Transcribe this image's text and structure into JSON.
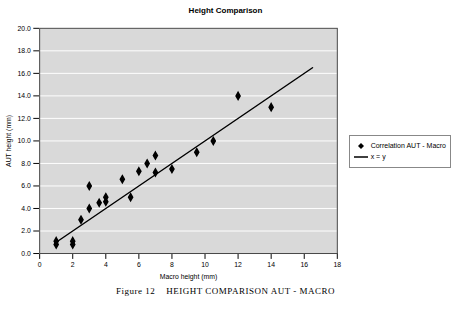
{
  "chart_data": {
    "type": "scatter",
    "title": "Height Comparison",
    "caption": "Figure 12    HEIGHT COMPARISON AUT - MACRO",
    "x_label": "Macro height (mm)",
    "y_label": "AUT height (mm)",
    "xlim": [
      0,
      18
    ],
    "xticks": [
      0,
      2,
      4,
      6,
      8,
      10,
      12,
      14,
      16,
      18
    ],
    "ylim": [
      0,
      20
    ],
    "yticks": [
      {
        "value": 0,
        "label": "0.0"
      },
      {
        "value": 2,
        "label": "2.0"
      },
      {
        "value": 4,
        "label": "4.0"
      },
      {
        "value": 6,
        "label": "6.0"
      },
      {
        "value": 8,
        "label": "8.0"
      },
      {
        "value": 10,
        "label": "10.0"
      },
      {
        "value": 12,
        "label": "12.0"
      },
      {
        "value": 14,
        "label": "14.0"
      },
      {
        "value": 16,
        "label": "16.0"
      },
      {
        "value": 18,
        "label": "18.0"
      },
      {
        "value": 20,
        "label": "20.0"
      }
    ],
    "grid": true,
    "legend": "right",
    "series": [
      {
        "name": "Correlation AUT - Macro",
        "type": "scatter",
        "marker": "diamond",
        "color": "#000000",
        "x": [
          1,
          1,
          2,
          2,
          2.5,
          3,
          3,
          3.6,
          4,
          4,
          5,
          5.5,
          6,
          6.5,
          7,
          7,
          8,
          9.5,
          10.5,
          12,
          14
        ],
        "values": [
          0.8,
          1.1,
          0.8,
          1.1,
          3.0,
          4.0,
          6.0,
          4.5,
          4.6,
          5.0,
          6.6,
          5.0,
          7.3,
          8.0,
          8.7,
          7.2,
          7.5,
          9.0,
          10.0,
          14.0,
          13.0
        ]
      },
      {
        "name": "x = y",
        "type": "line",
        "line_style": "solid",
        "color": "#000000",
        "x": [
          1,
          16.5
        ],
        "values": [
          1,
          16.5
        ]
      }
    ]
  }
}
